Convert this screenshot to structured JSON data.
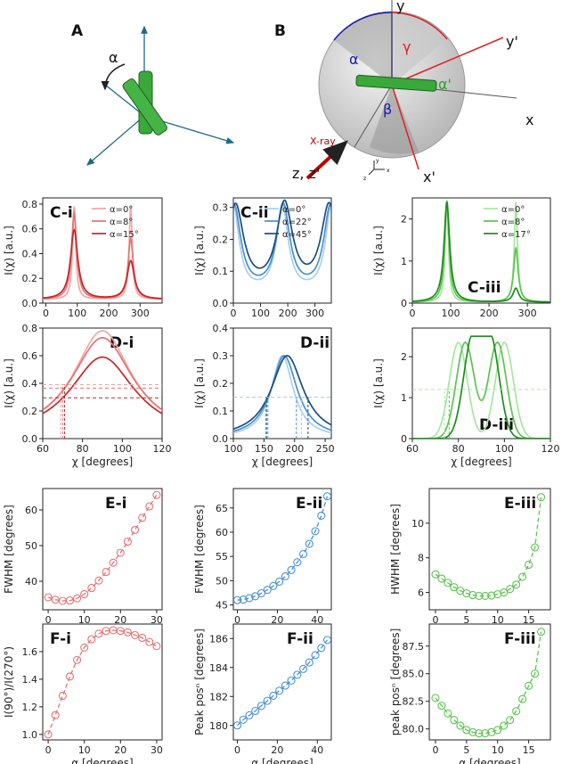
{
  "diagram_a": {
    "label": "A",
    "alpha": "α"
  },
  "diagram_b": {
    "label": "B",
    "y": "y",
    "yp": "y'",
    "x": "x",
    "xp": "x'",
    "zz": "z, z'",
    "xray": "X-ray",
    "alpha": "α",
    "gamma": "γ",
    "beta": "β",
    "alphap": "α'",
    "mini_y": "y",
    "mini_z": "z",
    "mini_x": "x"
  },
  "colors": {
    "red": [
      "#f2a7a7",
      "#e57373",
      "#c62828"
    ],
    "blue": [
      "#a9cfee",
      "#4a90d0",
      "#1a4e80"
    ],
    "green": [
      "#a8e6a0",
      "#5cc451",
      "#1e8c1e"
    ]
  },
  "chart_data": [
    {
      "id": "c1",
      "label": "C-i",
      "type": "line",
      "xlabel": "",
      "ylabel": "I(χ) [a.u.]",
      "xlim": [
        -10,
        370
      ],
      "ylim": [
        0,
        0.85
      ],
      "xticks": [
        0,
        100,
        200,
        300
      ],
      "yticks": [
        0.0,
        0.2,
        0.4,
        0.6,
        0.8
      ],
      "yticklabels": [
        "0.0",
        "0.2",
        "0.4",
        "0.6",
        "0.8"
      ],
      "legend": "top-left",
      "series": [
        {
          "name": "α=0°",
          "peaks": [
            [
              90,
              0.78
            ],
            [
              270,
              0.78
            ]
          ],
          "base": 0.03
        },
        {
          "name": "α=8°",
          "peaks": [
            [
              90,
              0.73
            ],
            [
              270,
              0.52
            ]
          ],
          "base": 0.03
        },
        {
          "name": "α=15°",
          "peaks": [
            [
              90,
              0.59
            ],
            [
              270,
              0.34
            ]
          ],
          "base": 0.03
        }
      ]
    },
    {
      "id": "c2",
      "label": "C-ii",
      "type": "line",
      "xlabel": "",
      "ylabel": "I(χ) [a.u.]",
      "xlim": [
        0,
        360
      ],
      "ylim": [
        0,
        0.33
      ],
      "xticks": [
        0,
        100,
        200,
        300
      ],
      "yticks": [
        0.0,
        0.1,
        0.2,
        0.3
      ],
      "yticklabels": [
        "0.0",
        "0.1",
        "0.2",
        "0.3"
      ],
      "legend": "top-right",
      "series": [
        {
          "name": "α=0°",
          "peaks": [
            [
              180,
              0.3
            ],
            [
              360,
              0.3
            ],
            [
              0,
              0.3
            ]
          ],
          "base": 0.03
        },
        {
          "name": "α=22°",
          "peaks": [
            [
              183,
              0.3
            ],
            [
              357,
              0.3
            ],
            [
              3,
              0.3
            ]
          ],
          "base": 0.03
        },
        {
          "name": "α=45°",
          "peaks": [
            [
              188,
              0.3
            ],
            [
              352,
              0.3
            ],
            [
              8,
              0.3
            ]
          ],
          "base": 0.03
        }
      ]
    },
    {
      "id": "c3",
      "label": "C-iii",
      "type": "line",
      "xlabel": "",
      "ylabel": "I(χ) [a.u.]",
      "xlim": [
        0,
        360
      ],
      "ylim": [
        0,
        2.5
      ],
      "xticks": [
        0,
        100,
        200,
        300
      ],
      "yticks": [
        0,
        1,
        2
      ],
      "yticklabels": [
        "0",
        "1",
        "2"
      ],
      "legend": "top-right",
      "series": [
        {
          "name": "α=0°",
          "peaks": [
            [
              90,
              2.4
            ],
            [
              270,
              2.4
            ]
          ],
          "base": 0.02
        },
        {
          "name": "α=8°",
          "peaks": [
            [
              90,
              2.4
            ],
            [
              270,
              1.3
            ]
          ],
          "base": 0.02
        },
        {
          "name": "α=17°",
          "peaks": [
            [
              90,
              2.4
            ],
            [
              270,
              0.35
            ]
          ],
          "base": 0.02
        }
      ]
    },
    {
      "id": "d1",
      "label": "D-i",
      "type": "line",
      "xlabel": "χ [degrees]",
      "ylabel": "I(χ) [a.u.]",
      "xlim": [
        60,
        120
      ],
      "ylim": [
        0,
        0.8
      ],
      "xticks": [
        60,
        80,
        100,
        120
      ],
      "yticks": [
        0.0,
        0.2,
        0.4,
        0.6,
        0.8
      ],
      "yticklabels": [
        "0.0",
        "0.2",
        "0.4",
        "0.6",
        "0.8"
      ],
      "series": [
        {
          "name": "α=0°",
          "peak": [
            90,
            0.78
          ]
        },
        {
          "name": "α=8°",
          "peak": [
            90,
            0.73
          ]
        },
        {
          "name": "α=15°",
          "peak": [
            90,
            0.59
          ]
        }
      ],
      "half_lines": [
        0.39,
        0.365,
        0.295
      ],
      "half_x": [
        69,
        70,
        71
      ]
    },
    {
      "id": "d2",
      "label": "D-ii",
      "type": "line",
      "xlabel": "χ [degrees]",
      "ylabel": "I(χ) [a.u.]",
      "xlim": [
        100,
        260
      ],
      "ylim": [
        0,
        0.4
      ],
      "xticks": [
        100,
        150,
        200,
        250
      ],
      "yticks": [
        0.0,
        0.1,
        0.2,
        0.3,
        0.4
      ],
      "yticklabels": [
        "0.0",
        "0.1",
        "0.2",
        "0.3",
        "0.4"
      ],
      "series": [
        {
          "name": "α=0°",
          "peak": [
            180,
            0.3
          ]
        },
        {
          "name": "α=22°",
          "peak": [
            183,
            0.3
          ]
        },
        {
          "name": "α=45°",
          "peak": [
            188,
            0.3
          ]
        }
      ],
      "half_lines": [
        0.15
      ],
      "half_x": [
        [
          157,
          203
        ],
        [
          155,
          211
        ],
        [
          153,
          222
        ]
      ]
    },
    {
      "id": "d3",
      "label": "D-iii",
      "type": "line",
      "xlabel": "χ [degrees]",
      "ylabel": "I(χ) [a.u.]",
      "xlim": [
        60,
        120
      ],
      "ylim": [
        0,
        2.7
      ],
      "xticks": [
        60,
        80,
        100,
        120
      ],
      "yticks": [
        0,
        1,
        2
      ],
      "yticklabels": [
        "0",
        "1",
        "2"
      ],
      "series": [
        {
          "name": "α=0°",
          "peaks": [
            [
              80,
              2.35
            ],
            [
              100,
              2.35
            ]
          ]
        },
        {
          "name": "α=8°",
          "peaks": [
            [
              83,
              2.35
            ],
            [
              97,
              2.35
            ]
          ]
        },
        {
          "name": "α=17°",
          "peaks": [
            [
              86,
              2.35
            ],
            [
              94,
              2.35
            ]
          ]
        }
      ],
      "half_lines": [
        1.2
      ],
      "half_x": [
        74,
        76
      ]
    },
    {
      "id": "e1",
      "label": "E-i",
      "type": "scatter",
      "xlabel": "",
      "ylabel": "FWHM [degrees]",
      "xlim": [
        -1.5,
        31.5
      ],
      "ylim": [
        32,
        66
      ],
      "xticks": [
        0,
        10,
        20,
        30
      ],
      "yticks": [
        40,
        50,
        60
      ],
      "yticklabels": [
        "40",
        "50",
        "60"
      ],
      "x": [
        0,
        2,
        4,
        6,
        8,
        10,
        12,
        14,
        16,
        18,
        20,
        22,
        24,
        26,
        28,
        30
      ],
      "y": [
        35.5,
        34.8,
        34.5,
        34.6,
        35.2,
        36.4,
        38.1,
        40.2,
        42.6,
        45.2,
        48.0,
        51.1,
        54.4,
        57.8,
        61.0,
        64.2
      ]
    },
    {
      "id": "e2",
      "label": "E-ii",
      "type": "scatter",
      "xlabel": "",
      "ylabel": "FWHM [degrees]",
      "xlim": [
        -2,
        47
      ],
      "ylim": [
        44,
        69
      ],
      "xticks": [
        0,
        20,
        40
      ],
      "yticks": [
        45,
        50,
        55,
        60,
        65
      ],
      "yticklabels": [
        "45",
        "50",
        "55",
        "60",
        "65"
      ],
      "x": [
        0,
        3,
        6,
        9,
        12,
        15,
        18,
        21,
        24,
        27,
        30,
        33,
        36,
        39,
        42,
        45
      ],
      "y": [
        46.0,
        46.1,
        46.4,
        46.8,
        47.4,
        48.1,
        48.9,
        49.8,
        50.9,
        52.2,
        53.8,
        55.5,
        57.6,
        60.2,
        63.4,
        67.4
      ]
    },
    {
      "id": "e3",
      "label": "E-iii",
      "type": "scatter",
      "xlabel": "",
      "ylabel": "HWHM [degrees]",
      "xlim": [
        -1,
        18.5
      ],
      "ylim": [
        5.0,
        12.0
      ],
      "xticks": [
        0,
        5,
        10,
        15
      ],
      "yticks": [
        6,
        8,
        10
      ],
      "yticklabels": [
        "6",
        "8",
        "10"
      ],
      "x": [
        0,
        1,
        2,
        3,
        4,
        5,
        6,
        7,
        8,
        9,
        10,
        11,
        12,
        13,
        14,
        15,
        16,
        17
      ],
      "y": [
        7.05,
        6.8,
        6.55,
        6.3,
        6.1,
        5.95,
        5.85,
        5.8,
        5.8,
        5.82,
        5.9,
        6.0,
        6.2,
        6.45,
        6.9,
        7.6,
        8.6,
        11.5
      ]
    },
    {
      "id": "f1",
      "label": "F-i",
      "type": "scatter",
      "xlabel": "α [degrees]",
      "ylabel": "I(90°)/I(270°)",
      "xlim": [
        -1.5,
        31.5
      ],
      "ylim": [
        0.96,
        1.8
      ],
      "xticks": [
        0,
        10,
        20,
        30
      ],
      "yticks": [
        1.0,
        1.2,
        1.4,
        1.6
      ],
      "yticklabels": [
        "1.0",
        "1.2",
        "1.4",
        "1.6"
      ],
      "x": [
        0,
        2,
        4,
        6,
        8,
        10,
        12,
        14,
        16,
        18,
        20,
        22,
        24,
        26,
        28,
        30
      ],
      "y": [
        1.0,
        1.14,
        1.28,
        1.42,
        1.54,
        1.63,
        1.69,
        1.73,
        1.75,
        1.755,
        1.75,
        1.74,
        1.72,
        1.7,
        1.67,
        1.64
      ]
    },
    {
      "id": "f2",
      "label": "F-ii",
      "type": "scatter",
      "xlabel": "α [degrees]",
      "ylabel": "Peak posⁿ [degrees]",
      "xlim": [
        -2,
        47
      ],
      "ylim": [
        179,
        187
      ],
      "xticks": [
        0,
        20,
        40
      ],
      "yticks": [
        180,
        182,
        184,
        186
      ],
      "yticklabels": [
        "180",
        "182",
        "184",
        "186"
      ],
      "x": [
        0,
        3,
        6,
        9,
        12,
        15,
        18,
        21,
        24,
        27,
        30,
        33,
        36,
        39,
        42,
        45
      ],
      "y": [
        180.0,
        180.4,
        180.7,
        181.0,
        181.35,
        181.7,
        182.05,
        182.4,
        182.75,
        183.1,
        183.5,
        183.9,
        184.35,
        184.85,
        185.35,
        185.9
      ]
    },
    {
      "id": "f3",
      "label": "F-iii",
      "type": "scatter",
      "xlabel": "α [degrees]",
      "ylabel": "peak posⁿ [degrees]",
      "xlim": [
        -1,
        18.5
      ],
      "ylim": [
        79,
        89.5
      ],
      "xticks": [
        0,
        5,
        10,
        15
      ],
      "yticks": [
        80.0,
        82.5,
        85.0,
        87.5
      ],
      "yticklabels": [
        "80.0",
        "82.5",
        "85.0",
        "87.5"
      ],
      "x": [
        0,
        1,
        2,
        3,
        4,
        5,
        6,
        7,
        8,
        9,
        10,
        11,
        12,
        13,
        14,
        15,
        16,
        17
      ],
      "y": [
        82.8,
        82.1,
        81.4,
        80.8,
        80.3,
        79.9,
        79.7,
        79.6,
        79.6,
        79.7,
        79.9,
        80.3,
        80.8,
        81.6,
        82.7,
        83.9,
        85.0,
        88.8
      ]
    }
  ]
}
